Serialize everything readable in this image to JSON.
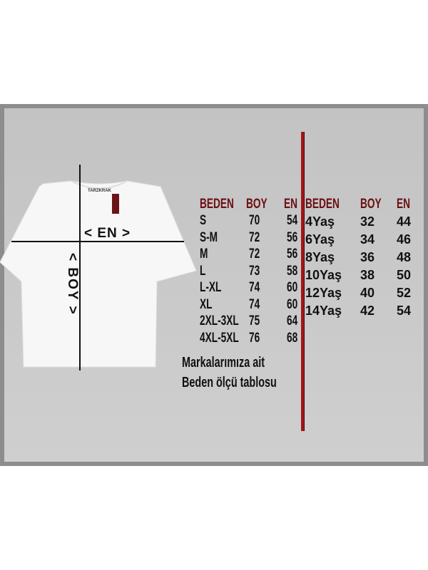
{
  "shirt": {
    "brand_label": "TARZKRAK",
    "width_label": "< EN >",
    "length_label": "< BOY >",
    "tag_color": "#6b1418"
  },
  "adult_table": {
    "headers": [
      "BEDEN",
      "BOY",
      "EN"
    ],
    "rows": [
      [
        "S",
        "70",
        "54"
      ],
      [
        "S-M",
        "72",
        "56"
      ],
      [
        "M",
        "72",
        "56"
      ],
      [
        "L",
        "73",
        "58"
      ],
      [
        "L-XL",
        "74",
        "60"
      ],
      [
        "XL",
        "74",
        "60"
      ],
      [
        "2XL-3XL",
        "75",
        "64"
      ],
      [
        "4XL-5XL",
        "76",
        "68"
      ]
    ]
  },
  "kids_table": {
    "headers": [
      "BEDEN",
      "BOY",
      "EN"
    ],
    "rows": [
      [
        "4Yaş",
        "32",
        "44"
      ],
      [
        "6Yaş",
        "34",
        "46"
      ],
      [
        "8Yaş",
        "36",
        "48"
      ],
      [
        "10Yaş",
        "38",
        "50"
      ],
      [
        "12Yaş",
        "40",
        "52"
      ],
      [
        "14Yaş",
        "42",
        "54"
      ]
    ]
  },
  "caption": {
    "line1": "Markalarımıza ait",
    "line2": "Beden ölçü tablosu"
  },
  "colors": {
    "header": "#6b0f12",
    "divider": "#a3161a",
    "panel": "#c8c8c8"
  }
}
